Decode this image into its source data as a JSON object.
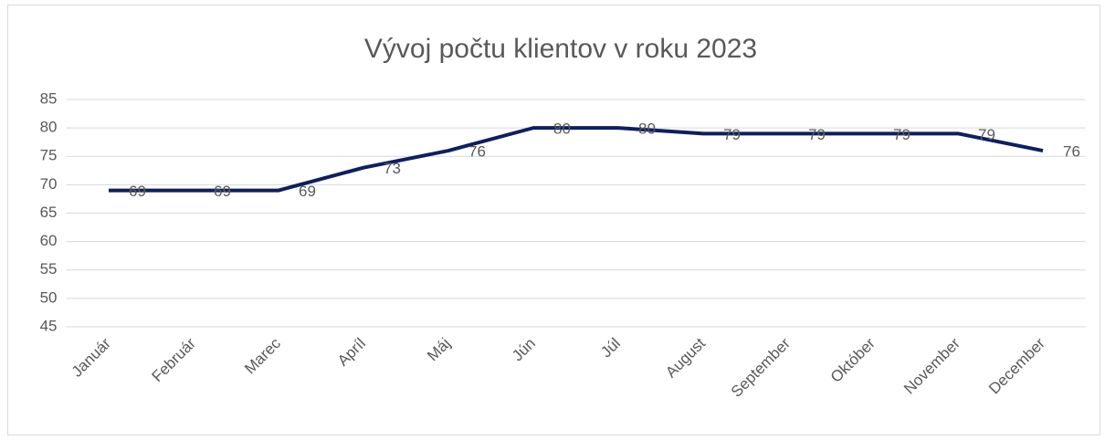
{
  "chart_data": {
    "type": "line",
    "title": "Vývoj počtu klientov v roku 2023",
    "categories": [
      "Január",
      "Február",
      "Marec",
      "Apríl",
      "Máj",
      "Jún",
      "Júl",
      "August",
      "September",
      "Október",
      "November",
      "December"
    ],
    "series": [
      {
        "name": "Počet klientov",
        "color": "#0f1f5c",
        "values": [
          69,
          69,
          69,
          73,
          76,
          80,
          80,
          79,
          79,
          79,
          79,
          76
        ]
      }
    ],
    "ylim": [
      45,
      85
    ],
    "yticks": [
      45,
      50,
      55,
      60,
      65,
      70,
      75,
      80,
      85
    ],
    "grid": true,
    "data_labels": true,
    "legend": false
  }
}
